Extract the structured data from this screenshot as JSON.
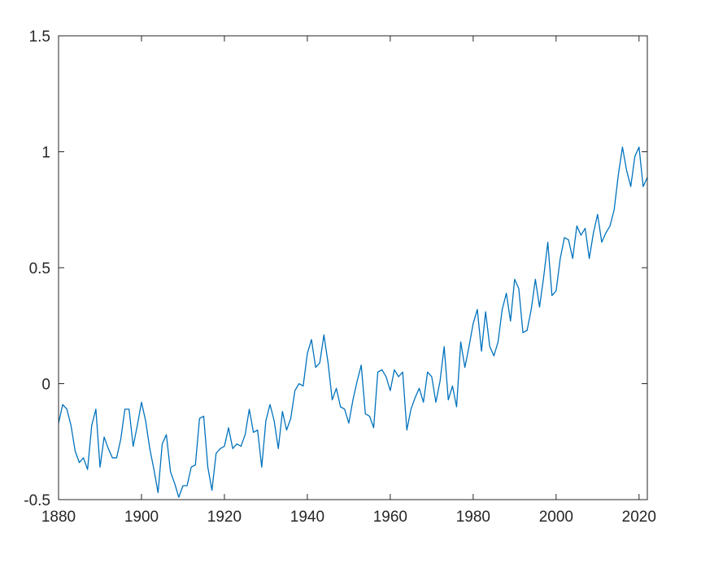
{
  "chart_data": {
    "type": "line",
    "title": "",
    "xlabel": "",
    "ylabel": "",
    "xlim": [
      1880,
      2022
    ],
    "ylim": [
      -0.5,
      1.5
    ],
    "grid": false,
    "box": true,
    "x_ticks": [
      {
        "value": 1880,
        "label": "1880"
      },
      {
        "value": 1900,
        "label": "1900"
      },
      {
        "value": 1920,
        "label": "1920"
      },
      {
        "value": 1940,
        "label": "1940"
      },
      {
        "value": 1960,
        "label": "1960"
      },
      {
        "value": 1980,
        "label": "1980"
      },
      {
        "value": 2000,
        "label": "2000"
      },
      {
        "value": 2020,
        "label": "2020"
      }
    ],
    "y_ticks": [
      {
        "value": -0.5,
        "label": "-0.5"
      },
      {
        "value": 0,
        "label": "0"
      },
      {
        "value": 0.5,
        "label": "0.5"
      },
      {
        "value": 1,
        "label": "1"
      },
      {
        "value": 1.5,
        "label": "1.5"
      }
    ],
    "series": [
      {
        "color": "#0072BD",
        "x": [
          1880,
          1881,
          1882,
          1883,
          1884,
          1885,
          1886,
          1887,
          1888,
          1889,
          1890,
          1891,
          1892,
          1893,
          1894,
          1895,
          1896,
          1897,
          1898,
          1899,
          1900,
          1901,
          1902,
          1903,
          1904,
          1905,
          1906,
          1907,
          1908,
          1909,
          1910,
          1911,
          1912,
          1913,
          1914,
          1915,
          1916,
          1917,
          1918,
          1919,
          1920,
          1921,
          1922,
          1923,
          1924,
          1925,
          1926,
          1927,
          1928,
          1929,
          1930,
          1931,
          1932,
          1933,
          1934,
          1935,
          1936,
          1937,
          1938,
          1939,
          1940,
          1941,
          1942,
          1943,
          1944,
          1945,
          1946,
          1947,
          1948,
          1949,
          1950,
          1951,
          1952,
          1953,
          1954,
          1955,
          1956,
          1957,
          1958,
          1959,
          1960,
          1961,
          1962,
          1963,
          1964,
          1965,
          1966,
          1967,
          1968,
          1969,
          1970,
          1971,
          1972,
          1973,
          1974,
          1975,
          1976,
          1977,
          1978,
          1979,
          1980,
          1981,
          1982,
          1983,
          1984,
          1985,
          1986,
          1987,
          1988,
          1989,
          1990,
          1991,
          1992,
          1993,
          1994,
          1995,
          1996,
          1997,
          1998,
          1999,
          2000,
          2001,
          2002,
          2003,
          2004,
          2005,
          2006,
          2007,
          2008,
          2009,
          2010,
          2011,
          2012,
          2013,
          2014,
          2015,
          2016,
          2017,
          2018,
          2019,
          2020,
          2021,
          2022
        ],
        "y": [
          -0.17,
          -0.09,
          -0.11,
          -0.18,
          -0.29,
          -0.34,
          -0.32,
          -0.37,
          -0.18,
          -0.11,
          -0.36,
          -0.23,
          -0.28,
          -0.32,
          -0.32,
          -0.24,
          -0.11,
          -0.11,
          -0.27,
          -0.18,
          -0.08,
          -0.16,
          -0.28,
          -0.37,
          -0.47,
          -0.26,
          -0.22,
          -0.38,
          -0.43,
          -0.49,
          -0.44,
          -0.44,
          -0.36,
          -0.35,
          -0.15,
          -0.14,
          -0.36,
          -0.46,
          -0.3,
          -0.28,
          -0.27,
          -0.19,
          -0.28,
          -0.26,
          -0.27,
          -0.22,
          -0.11,
          -0.21,
          -0.2,
          -0.36,
          -0.16,
          -0.09,
          -0.16,
          -0.28,
          -0.12,
          -0.2,
          -0.15,
          -0.03,
          0.0,
          -0.01,
          0.13,
          0.19,
          0.07,
          0.09,
          0.21,
          0.09,
          -0.07,
          -0.02,
          -0.1,
          -0.11,
          -0.17,
          -0.07,
          0.01,
          0.08,
          -0.13,
          -0.14,
          -0.19,
          0.05,
          0.06,
          0.03,
          -0.03,
          0.06,
          0.03,
          0.05,
          -0.2,
          -0.11,
          -0.06,
          -0.02,
          -0.08,
          0.05,
          0.03,
          -0.08,
          0.01,
          0.16,
          -0.07,
          -0.01,
          -0.1,
          0.18,
          0.07,
          0.16,
          0.26,
          0.32,
          0.14,
          0.31,
          0.16,
          0.12,
          0.18,
          0.32,
          0.39,
          0.27,
          0.45,
          0.41,
          0.22,
          0.23,
          0.32,
          0.45,
          0.33,
          0.46,
          0.61,
          0.38,
          0.4,
          0.54,
          0.63,
          0.62,
          0.54,
          0.68,
          0.64,
          0.67,
          0.54,
          0.65,
          0.73,
          0.61,
          0.65,
          0.68,
          0.75,
          0.9,
          1.02,
          0.92,
          0.85,
          0.98,
          1.02,
          0.85,
          0.89
        ]
      }
    ]
  }
}
